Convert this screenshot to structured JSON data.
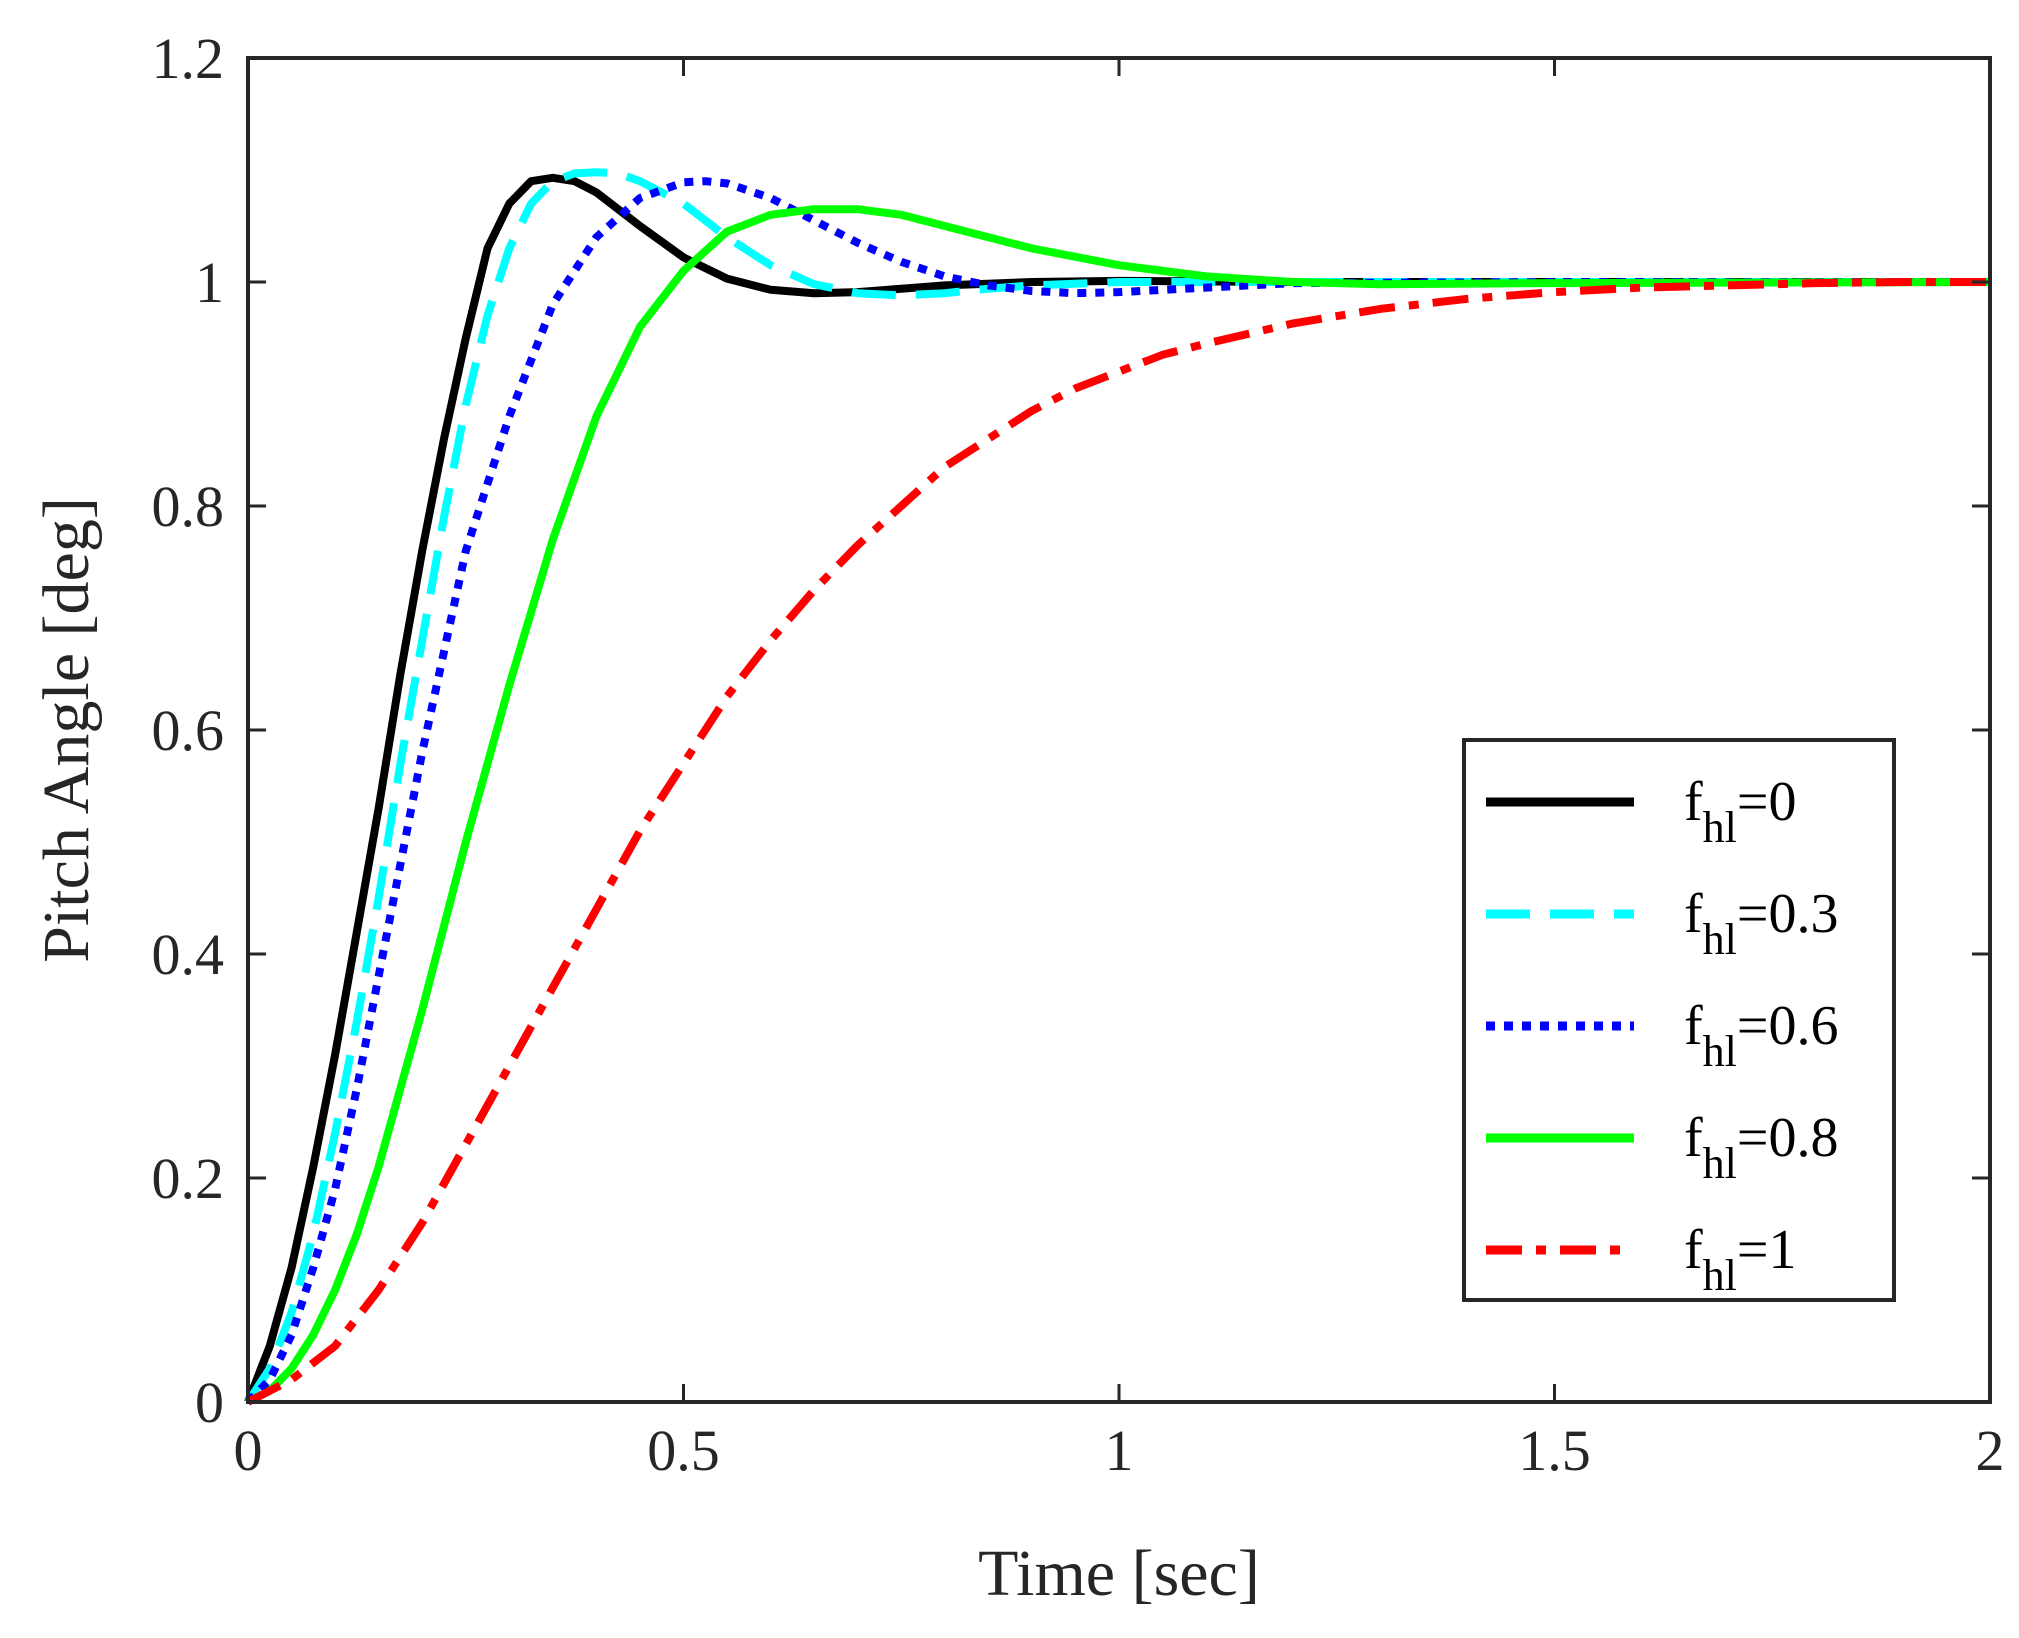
{
  "chart_data": {
    "type": "line",
    "title": "",
    "xlabel": "Time [sec]",
    "ylabel": "Pitch Angle [deg]",
    "xlim": [
      0,
      2
    ],
    "ylim": [
      0,
      1.2
    ],
    "x_ticks": [
      0,
      0.5,
      1,
      1.5,
      2
    ],
    "x_tick_labels": [
      "0",
      "0.5",
      "1",
      "1.5",
      "2"
    ],
    "y_ticks": [
      0,
      0.2,
      0.4,
      0.6,
      0.8,
      1.0,
      1.2
    ],
    "y_tick_labels": [
      "0",
      "0.2",
      "0.4",
      "0.6",
      "0.8",
      "1",
      "1.2"
    ],
    "grid": false,
    "legend_position": "bottom-right",
    "series": [
      {
        "name": "f_hl=0",
        "legend_main": "f",
        "legend_sub": "hl",
        "legend_value": "=0",
        "color": "#000000",
        "style": "solid",
        "x": [
          0,
          0.025,
          0.05,
          0.075,
          0.1,
          0.125,
          0.15,
          0.175,
          0.2,
          0.225,
          0.25,
          0.275,
          0.3,
          0.325,
          0.35,
          0.375,
          0.4,
          0.45,
          0.5,
          0.55,
          0.6,
          0.65,
          0.7,
          0.75,
          0.8,
          0.9,
          1.0,
          1.2,
          1.5,
          2.0
        ],
        "y": [
          0,
          0.05,
          0.12,
          0.21,
          0.31,
          0.42,
          0.53,
          0.65,
          0.76,
          0.86,
          0.95,
          1.03,
          1.07,
          1.09,
          1.093,
          1.09,
          1.08,
          1.05,
          1.022,
          1.003,
          0.993,
          0.99,
          0.991,
          0.994,
          0.997,
          1.0,
          1.001,
          1.0,
          1.0,
          1.0
        ]
      },
      {
        "name": "f_hl=0.3",
        "legend_main": "f",
        "legend_sub": "hl",
        "legend_value": "=0.3",
        "color": "#00ffff",
        "style": "dashed",
        "x": [
          0,
          0.025,
          0.05,
          0.075,
          0.1,
          0.125,
          0.15,
          0.175,
          0.2,
          0.225,
          0.25,
          0.275,
          0.3,
          0.325,
          0.35,
          0.375,
          0.4,
          0.425,
          0.45,
          0.5,
          0.55,
          0.6,
          0.65,
          0.7,
          0.75,
          0.8,
          0.85,
          0.9,
          1.0,
          1.2,
          1.5,
          2.0
        ],
        "y": [
          0,
          0.03,
          0.08,
          0.15,
          0.24,
          0.34,
          0.45,
          0.57,
          0.68,
          0.79,
          0.89,
          0.97,
          1.03,
          1.07,
          1.09,
          1.097,
          1.098,
          1.097,
          1.09,
          1.07,
          1.04,
          1.015,
          0.998,
          0.99,
          0.988,
          0.99,
          0.994,
          0.997,
          1.0,
          1.0,
          1.0,
          1.0
        ]
      },
      {
        "name": "f_hl=0.6",
        "legend_main": "f",
        "legend_sub": "hl",
        "legend_value": "=0.6",
        "color": "#0000ff",
        "style": "dotted",
        "x": [
          0,
          0.025,
          0.05,
          0.075,
          0.1,
          0.125,
          0.15,
          0.175,
          0.2,
          0.225,
          0.25,
          0.3,
          0.35,
          0.4,
          0.45,
          0.5,
          0.525,
          0.55,
          0.6,
          0.65,
          0.7,
          0.75,
          0.8,
          0.85,
          0.9,
          0.95,
          1.0,
          1.1,
          1.2,
          1.5,
          2.0
        ],
        "y": [
          0,
          0.02,
          0.06,
          0.12,
          0.19,
          0.28,
          0.38,
          0.48,
          0.58,
          0.67,
          0.76,
          0.88,
          0.98,
          1.04,
          1.075,
          1.089,
          1.09,
          1.088,
          1.075,
          1.055,
          1.035,
          1.018,
          1.005,
          0.997,
          0.992,
          0.99,
          0.991,
          0.995,
          0.999,
          1.0,
          1.0
        ]
      },
      {
        "name": "f_hl=0.8",
        "legend_main": "f",
        "legend_sub": "hl",
        "legend_value": "=0.8",
        "color": "#00ff00",
        "style": "solid",
        "x": [
          0,
          0.025,
          0.05,
          0.075,
          0.1,
          0.125,
          0.15,
          0.175,
          0.2,
          0.25,
          0.3,
          0.35,
          0.4,
          0.45,
          0.5,
          0.55,
          0.6,
          0.65,
          0.7,
          0.75,
          0.8,
          0.9,
          1.0,
          1.1,
          1.2,
          1.3,
          1.5,
          2.0
        ],
        "y": [
          0,
          0.01,
          0.03,
          0.06,
          0.1,
          0.15,
          0.21,
          0.28,
          0.35,
          0.5,
          0.64,
          0.77,
          0.88,
          0.96,
          1.01,
          1.045,
          1.06,
          1.065,
          1.065,
          1.06,
          1.05,
          1.03,
          1.015,
          1.005,
          1.0,
          0.998,
          0.999,
          1.0
        ]
      },
      {
        "name": "f_hl=1",
        "legend_main": "f",
        "legend_sub": "hl",
        "legend_value": "=1",
        "color": "#ff0000",
        "style": "dashdot",
        "x": [
          0,
          0.05,
          0.1,
          0.15,
          0.2,
          0.25,
          0.3,
          0.35,
          0.4,
          0.45,
          0.5,
          0.55,
          0.6,
          0.65,
          0.7,
          0.75,
          0.8,
          0.85,
          0.9,
          0.95,
          1.0,
          1.05,
          1.1,
          1.2,
          1.3,
          1.4,
          1.5,
          1.6,
          1.7,
          1.8,
          1.9,
          2.0
        ],
        "y": [
          0,
          0.02,
          0.05,
          0.1,
          0.16,
          0.23,
          0.3,
          0.37,
          0.44,
          0.51,
          0.57,
          0.63,
          0.68,
          0.725,
          0.765,
          0.8,
          0.835,
          0.86,
          0.885,
          0.905,
          0.92,
          0.935,
          0.945,
          0.963,
          0.976,
          0.985,
          0.991,
          0.995,
          0.997,
          0.999,
          1.0,
          1.0
        ]
      }
    ]
  }
}
